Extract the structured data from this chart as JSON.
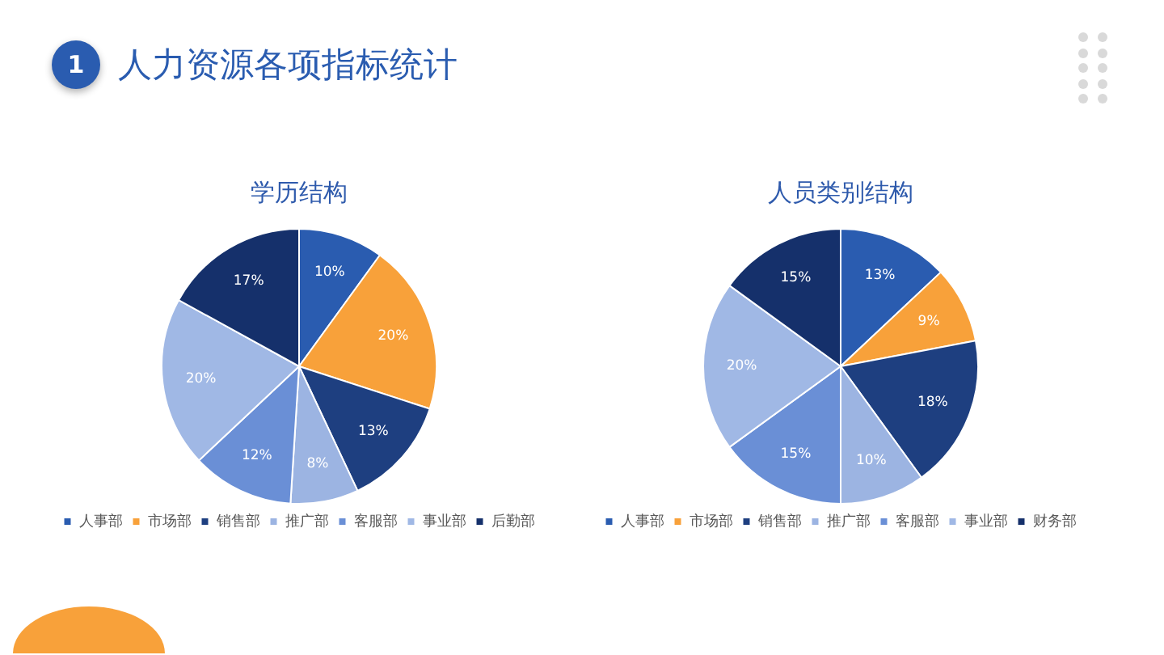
{
  "chart_data": [
    {
      "type": "other",
      "title": "人力资源各项指标统计",
      "annotations": [
        "1"
      ]
    },
    {
      "type": "pie",
      "title": "学历结构",
      "categories": [
        "人事部",
        "市场部",
        "销售部",
        "推广部",
        "客服部",
        "事业部",
        "后勤部"
      ],
      "values": [
        10,
        20,
        13,
        8,
        12,
        20,
        17
      ],
      "value_labels": [
        "10%",
        "20%",
        "13%",
        "8%",
        "12%",
        "20%",
        "17%"
      ],
      "colors": [
        "#2a5cb0",
        "#f8a13a",
        "#1e3f80",
        "#9cb4e2",
        "#6a8fd6",
        "#a0b8e5",
        "#15306b"
      ],
      "legend": "bottom"
    },
    {
      "type": "pie",
      "title": "人员类别结构",
      "categories": [
        "人事部",
        "市场部",
        "销售部",
        "推广部",
        "客服部",
        "事业部",
        "财务部"
      ],
      "values": [
        13,
        9,
        18,
        10,
        15,
        20,
        15
      ],
      "value_labels": [
        "13%",
        "9%",
        "18%",
        "10%",
        "15%",
        "20%",
        "15%"
      ],
      "colors": [
        "#2a5cb0",
        "#f8a13a",
        "#1e3f80",
        "#9cb4e2",
        "#6a8fd6",
        "#a0b8e5",
        "#15306b"
      ],
      "legend": "bottom"
    }
  ]
}
